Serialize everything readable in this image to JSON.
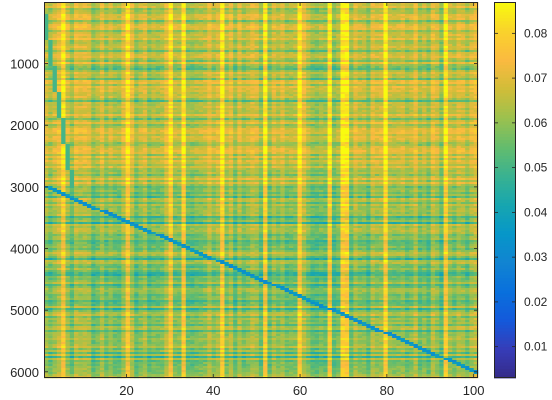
{
  "chart_data": {
    "type": "heatmap",
    "title": "",
    "xlabel": "",
    "ylabel": "",
    "colormap": "parula",
    "xlim": [
      1,
      101
    ],
    "ylim": [
      1,
      6100
    ],
    "y_reversed": true,
    "x_ticks": [
      {
        "value": 20,
        "label": "20"
      },
      {
        "value": 40,
        "label": "40"
      },
      {
        "value": 60,
        "label": "60"
      },
      {
        "value": 80,
        "label": "80"
      },
      {
        "value": 100,
        "label": "100"
      }
    ],
    "y_ticks": [
      {
        "value": 1000,
        "label": "1000"
      },
      {
        "value": 2000,
        "label": "2000"
      },
      {
        "value": 3000,
        "label": "3000"
      },
      {
        "value": 4000,
        "label": "4000"
      },
      {
        "value": 5000,
        "label": "5000"
      },
      {
        "value": 6000,
        "label": "6000"
      }
    ],
    "colorbar": {
      "range": [
        0.003,
        0.087
      ],
      "ticks": [
        {
          "value": 0.01,
          "label": "0.01"
        },
        {
          "value": 0.02,
          "label": "0.02"
        },
        {
          "value": 0.03,
          "label": "0.03"
        },
        {
          "value": 0.04,
          "label": "0.04"
        },
        {
          "value": 0.05,
          "label": "0.05"
        },
        {
          "value": 0.06,
          "label": "0.06"
        },
        {
          "value": 0.07,
          "label": "0.07"
        },
        {
          "value": 0.08,
          "label": "0.08"
        }
      ]
    },
    "value_summary": {
      "background": 0.06,
      "top_region_rows": [
        1,
        2950
      ],
      "top_region_value": 0.066,
      "bright_columns": [
        5,
        20,
        30,
        33,
        42,
        52,
        60,
        67,
        70,
        71,
        80,
        94
      ],
      "bright_column_value": 0.08,
      "dim_columns": [
        12,
        25,
        45,
        63,
        76,
        90
      ],
      "diagonal_value": 0.03
    }
  }
}
